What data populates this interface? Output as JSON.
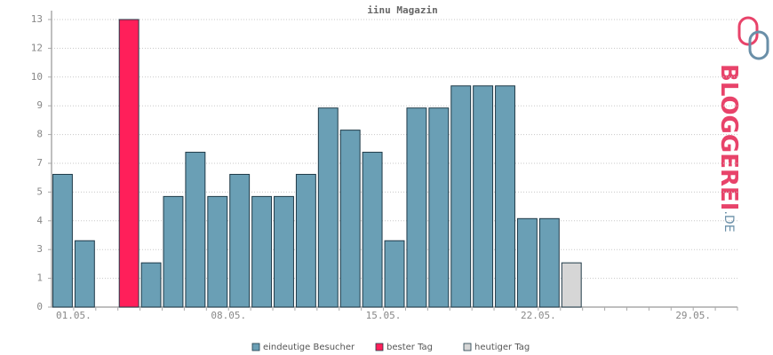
{
  "chart_data": {
    "type": "bar",
    "title": "iinu Magazin",
    "categories": [
      "01.05.",
      null,
      null,
      null,
      null,
      null,
      null,
      "08.05.",
      null,
      null,
      null,
      null,
      null,
      null,
      "15.05.",
      null,
      null,
      null,
      null,
      null,
      null,
      "22.05.",
      null,
      null,
      null,
      null,
      null,
      null,
      "29.05.",
      null,
      null
    ],
    "series": [
      {
        "name": "eindeutige Besucher",
        "color": "#6a9fb5",
        "values": [
          6,
          3,
          0,
          null,
          2,
          5,
          7,
          5,
          6,
          5,
          5,
          6,
          9,
          8,
          7,
          3,
          9,
          9,
          10,
          10,
          10,
          4,
          4,
          null,
          null,
          null,
          null,
          null,
          null,
          null,
          null
        ]
      },
      {
        "name": "bester Tag",
        "color": "#ff1f5a",
        "values": [
          null,
          null,
          null,
          13,
          null,
          null,
          null,
          null,
          null,
          null,
          null,
          null,
          null,
          null,
          null,
          null,
          null,
          null,
          null,
          null,
          null,
          null,
          null,
          null,
          null,
          null,
          null,
          null,
          null,
          null,
          null
        ]
      },
      {
        "name": "heutiger Tag",
        "color": "#d6d6d6",
        "values": [
          null,
          null,
          null,
          null,
          null,
          null,
          null,
          null,
          null,
          null,
          null,
          null,
          null,
          null,
          null,
          null,
          null,
          null,
          null,
          null,
          null,
          null,
          null,
          2,
          null,
          null,
          null,
          null,
          null,
          null,
          null
        ]
      }
    ],
    "ylim": [
      0,
      13
    ],
    "yticks": [
      0,
      {
        "value": 1.3,
        "label": "1"
      },
      {
        "value": 2.6,
        "label": "3"
      },
      {
        "value": 3.9,
        "label": "4"
      },
      {
        "value": 5.2,
        "label": "5"
      },
      {
        "value": 6.5,
        "label": "7"
      },
      {
        "value": 7.8,
        "label": "8"
      },
      {
        "value": 9.1,
        "label": "9"
      },
      {
        "value": 10.4,
        "label": "10"
      },
      {
        "value": 11.7,
        "label": "12"
      },
      13
    ],
    "grid": true
  },
  "logo": [
    "BLOGGEREI",
    ".DE"
  ]
}
